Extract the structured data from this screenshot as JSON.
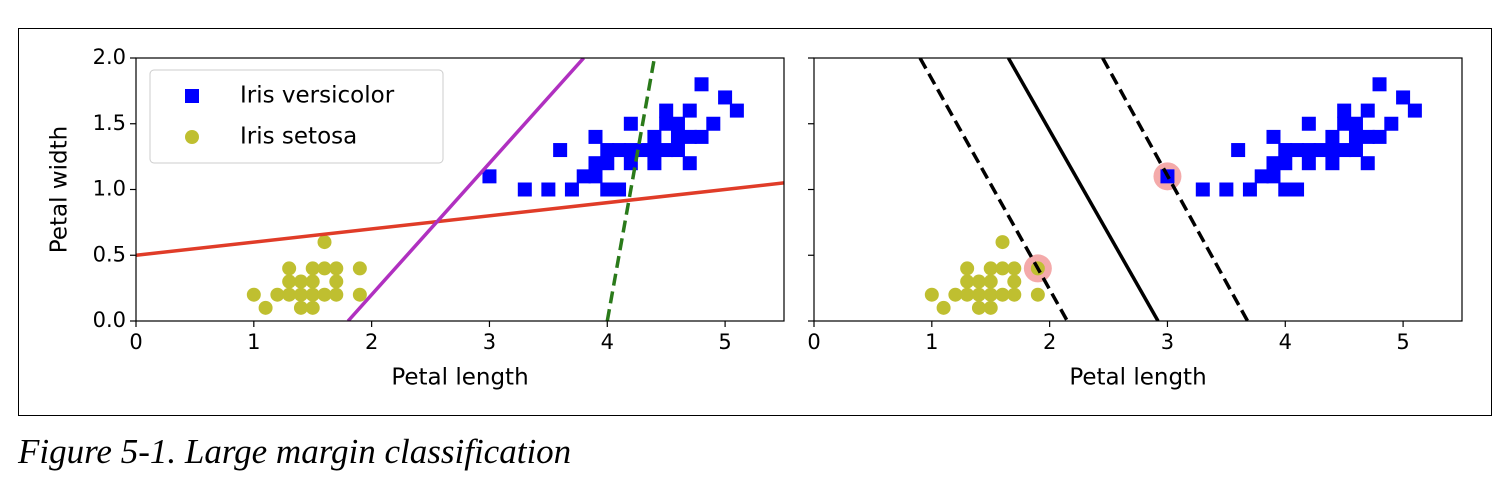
{
  "caption": "Figure 5-1. Large margin classification",
  "chart_data": [
    {
      "type": "scatter",
      "xlabel": "Petal length",
      "ylabel": "Petal width",
      "xlim": [
        0,
        5.5
      ],
      "ylim": [
        0,
        2
      ],
      "xticks": [
        0,
        1,
        2,
        3,
        4,
        5
      ],
      "yticks": [
        {
          "value": 0,
          "label": "0.0"
        },
        {
          "value": 0.5,
          "label": "0.5"
        },
        {
          "value": 1,
          "label": "1.0"
        },
        {
          "value": 1.5,
          "label": "1.5"
        },
        {
          "value": 2,
          "label": "2.0"
        }
      ],
      "legend": "upper left",
      "series": [
        {
          "name": "Iris versicolor",
          "color": "#0000ff",
          "marker": "square",
          "x": [
            3.0,
            3.3,
            3.5,
            3.6,
            3.7,
            3.8,
            3.9,
            3.9,
            3.9,
            4.0,
            4.0,
            4.0,
            4.1,
            4.1,
            4.2,
            4.2,
            4.2,
            4.3,
            4.4,
            4.4,
            4.4,
            4.5,
            4.5,
            4.5,
            4.6,
            4.6,
            4.6,
            4.7,
            4.7,
            4.7,
            4.8,
            4.8,
            4.9,
            5.0,
            5.1
          ],
          "y": [
            1.1,
            1.0,
            1.0,
            1.3,
            1.0,
            1.1,
            1.1,
            1.2,
            1.4,
            1.0,
            1.2,
            1.3,
            1.0,
            1.3,
            1.2,
            1.3,
            1.5,
            1.3,
            1.2,
            1.3,
            1.4,
            1.3,
            1.5,
            1.6,
            1.3,
            1.4,
            1.5,
            1.2,
            1.4,
            1.6,
            1.4,
            1.8,
            1.5,
            1.7,
            1.6
          ]
        },
        {
          "name": "Iris setosa",
          "color": "#bfbf30",
          "marker": "circle",
          "x": [
            1.0,
            1.1,
            1.2,
            1.3,
            1.3,
            1.3,
            1.4,
            1.4,
            1.4,
            1.5,
            1.5,
            1.5,
            1.5,
            1.6,
            1.6,
            1.6,
            1.7,
            1.7,
            1.7,
            1.9,
            1.9
          ],
          "y": [
            0.2,
            0.1,
            0.2,
            0.2,
            0.3,
            0.4,
            0.1,
            0.2,
            0.3,
            0.1,
            0.2,
            0.3,
            0.4,
            0.2,
            0.4,
            0.6,
            0.2,
            0.3,
            0.4,
            0.2,
            0.4
          ]
        }
      ],
      "lines": [
        {
          "color": "#e03c28",
          "style": "solid",
          "x": [
            0,
            5.5
          ],
          "y": [
            0.5,
            1.05
          ]
        },
        {
          "color": "#b030c0",
          "style": "solid",
          "x": [
            1.8,
            3.8
          ],
          "y": [
            0,
            2
          ]
        },
        {
          "color": "#2a7a1a",
          "style": "dashed",
          "x": [
            4.0,
            4.4
          ],
          "y": [
            0,
            2
          ]
        }
      ]
    },
    {
      "type": "scatter",
      "xlabel": "Petal length",
      "xlim": [
        0,
        5.5
      ],
      "ylim": [
        0,
        2
      ],
      "xticks": [
        0,
        1,
        2,
        3,
        4,
        5
      ],
      "yticks": [
        0,
        0.5,
        1,
        1.5,
        2
      ],
      "highlights": {
        "color": "#f4aaaa",
        "x": [
          1.9,
          3.0
        ],
        "y": [
          0.4,
          1.1
        ]
      },
      "series": [
        {
          "color": "#0000ff",
          "marker": "square",
          "x": [
            3.0,
            3.3,
            3.5,
            3.6,
            3.7,
            3.8,
            3.9,
            3.9,
            3.9,
            4.0,
            4.0,
            4.0,
            4.1,
            4.1,
            4.2,
            4.2,
            4.2,
            4.3,
            4.4,
            4.4,
            4.4,
            4.5,
            4.5,
            4.5,
            4.6,
            4.6,
            4.6,
            4.7,
            4.7,
            4.7,
            4.8,
            4.8,
            4.9,
            5.0,
            5.1
          ],
          "y": [
            1.1,
            1.0,
            1.0,
            1.3,
            1.0,
            1.1,
            1.1,
            1.2,
            1.4,
            1.0,
            1.2,
            1.3,
            1.0,
            1.3,
            1.2,
            1.3,
            1.5,
            1.3,
            1.2,
            1.3,
            1.4,
            1.3,
            1.5,
            1.6,
            1.3,
            1.4,
            1.5,
            1.2,
            1.4,
            1.6,
            1.4,
            1.8,
            1.5,
            1.7,
            1.6
          ]
        },
        {
          "color": "#bfbf30",
          "marker": "circle",
          "x": [
            1.0,
            1.1,
            1.2,
            1.3,
            1.3,
            1.3,
            1.4,
            1.4,
            1.4,
            1.5,
            1.5,
            1.5,
            1.5,
            1.6,
            1.6,
            1.6,
            1.7,
            1.7,
            1.7,
            1.9,
            1.9
          ],
          "y": [
            0.2,
            0.1,
            0.2,
            0.2,
            0.3,
            0.4,
            0.1,
            0.2,
            0.3,
            0.1,
            0.2,
            0.3,
            0.4,
            0.2,
            0.4,
            0.6,
            0.2,
            0.3,
            0.4,
            0.2,
            0.4
          ]
        }
      ],
      "lines": [
        {
          "color": "#000000",
          "style": "solid",
          "x": [
            1.65,
            2.92
          ],
          "y": [
            2,
            0
          ]
        },
        {
          "color": "#000000",
          "style": "dashed",
          "x": [
            0.9,
            2.15
          ],
          "y": [
            2,
            0
          ]
        },
        {
          "color": "#000000",
          "style": "dashed",
          "x": [
            2.45,
            3.68
          ],
          "y": [
            2,
            0
          ]
        }
      ]
    }
  ]
}
